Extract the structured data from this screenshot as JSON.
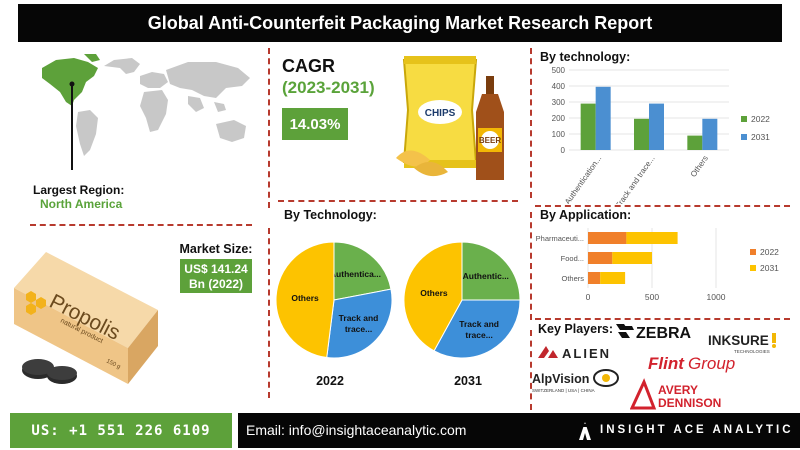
{
  "header": {
    "title": "Global Anti-Counterfeit Packaging Market Research Report"
  },
  "region": {
    "label": "Largest Region:",
    "value": "North America"
  },
  "market_size": {
    "label": "Market Size:",
    "value_line1": "US$ 141.24",
    "value_line2": "Bn (2022)"
  },
  "cagr": {
    "title": "CAGR",
    "years": "(2023-2031)",
    "value": "14.03%"
  },
  "illustration": {
    "chips_label": "CHIPS",
    "beer_label": "BEER",
    "propolis_label": "Propolis",
    "propolis_sub": "natural product",
    "propolis_weight": "150 g"
  },
  "sections": {
    "by_technology_bar": "By technology:",
    "by_technology_pie": "By Technology:",
    "by_application": "By Application:",
    "key_players": "Key Players:"
  },
  "pie_years": {
    "left": "2022",
    "right": "2031"
  },
  "key_players": {
    "zebra": "ZEBRA",
    "inksure": "INKSURE",
    "inksure_sub": "TECHNOLOGIES",
    "alien": "ALIEN",
    "flint_a": "Flint",
    "flint_b": "Group",
    "alpvision": "AlpVision",
    "alpvision_sub": "SWITZERLAND | USA | CHINA",
    "avery_a": "AVERY",
    "avery_b": "DENNISON"
  },
  "footer": {
    "phone": "US: +1 551 226 6109",
    "email": "Email: info@insightaceanalytic.com",
    "brand": "INSIGHT ACE ANALYTIC"
  },
  "colors": {
    "green": "#5da13a",
    "blue": "#4b8fd1",
    "orange": "#f07f2a",
    "yellow": "#fdc300",
    "pie_green": "#6ab04c",
    "pie_blue": "#3d8fd9",
    "pie_yellow": "#fdc300"
  },
  "chart_data": [
    {
      "type": "bar",
      "title": "By technology:",
      "categories": [
        "Authentication...",
        "Track and trace...",
        "Others"
      ],
      "series": [
        {
          "name": "2022",
          "values": [
            290,
            195,
            90
          ]
        },
        {
          "name": "2031",
          "values": [
            395,
            290,
            195
          ]
        }
      ],
      "ylim": [
        0,
        500
      ],
      "yticks": [
        0,
        100,
        200,
        300,
        400,
        500
      ],
      "legend": "right"
    },
    {
      "type": "pie",
      "title": "By Technology:",
      "year": "2022",
      "labels": [
        "Authentica...",
        "Track and trace...",
        "Others"
      ],
      "values": [
        22,
        30,
        48
      ]
    },
    {
      "type": "pie",
      "year": "2031",
      "labels": [
        "Authentic...",
        "Track and trace...",
        "Others"
      ],
      "values": [
        25,
        33,
        42
      ]
    },
    {
      "type": "bar",
      "orientation": "horizontal",
      "stacked": true,
      "title": "By Application:",
      "categories": [
        "Pharmaceuti...",
        "Food...",
        "Others"
      ],
      "series": [
        {
          "name": "2022",
          "values": [
            300,
            190,
            95
          ]
        },
        {
          "name": "2031",
          "values": [
            400,
            310,
            195
          ]
        }
      ],
      "xlim": [
        0,
        1000
      ],
      "xticks": [
        0,
        500,
        1000
      ],
      "legend": "right"
    }
  ]
}
